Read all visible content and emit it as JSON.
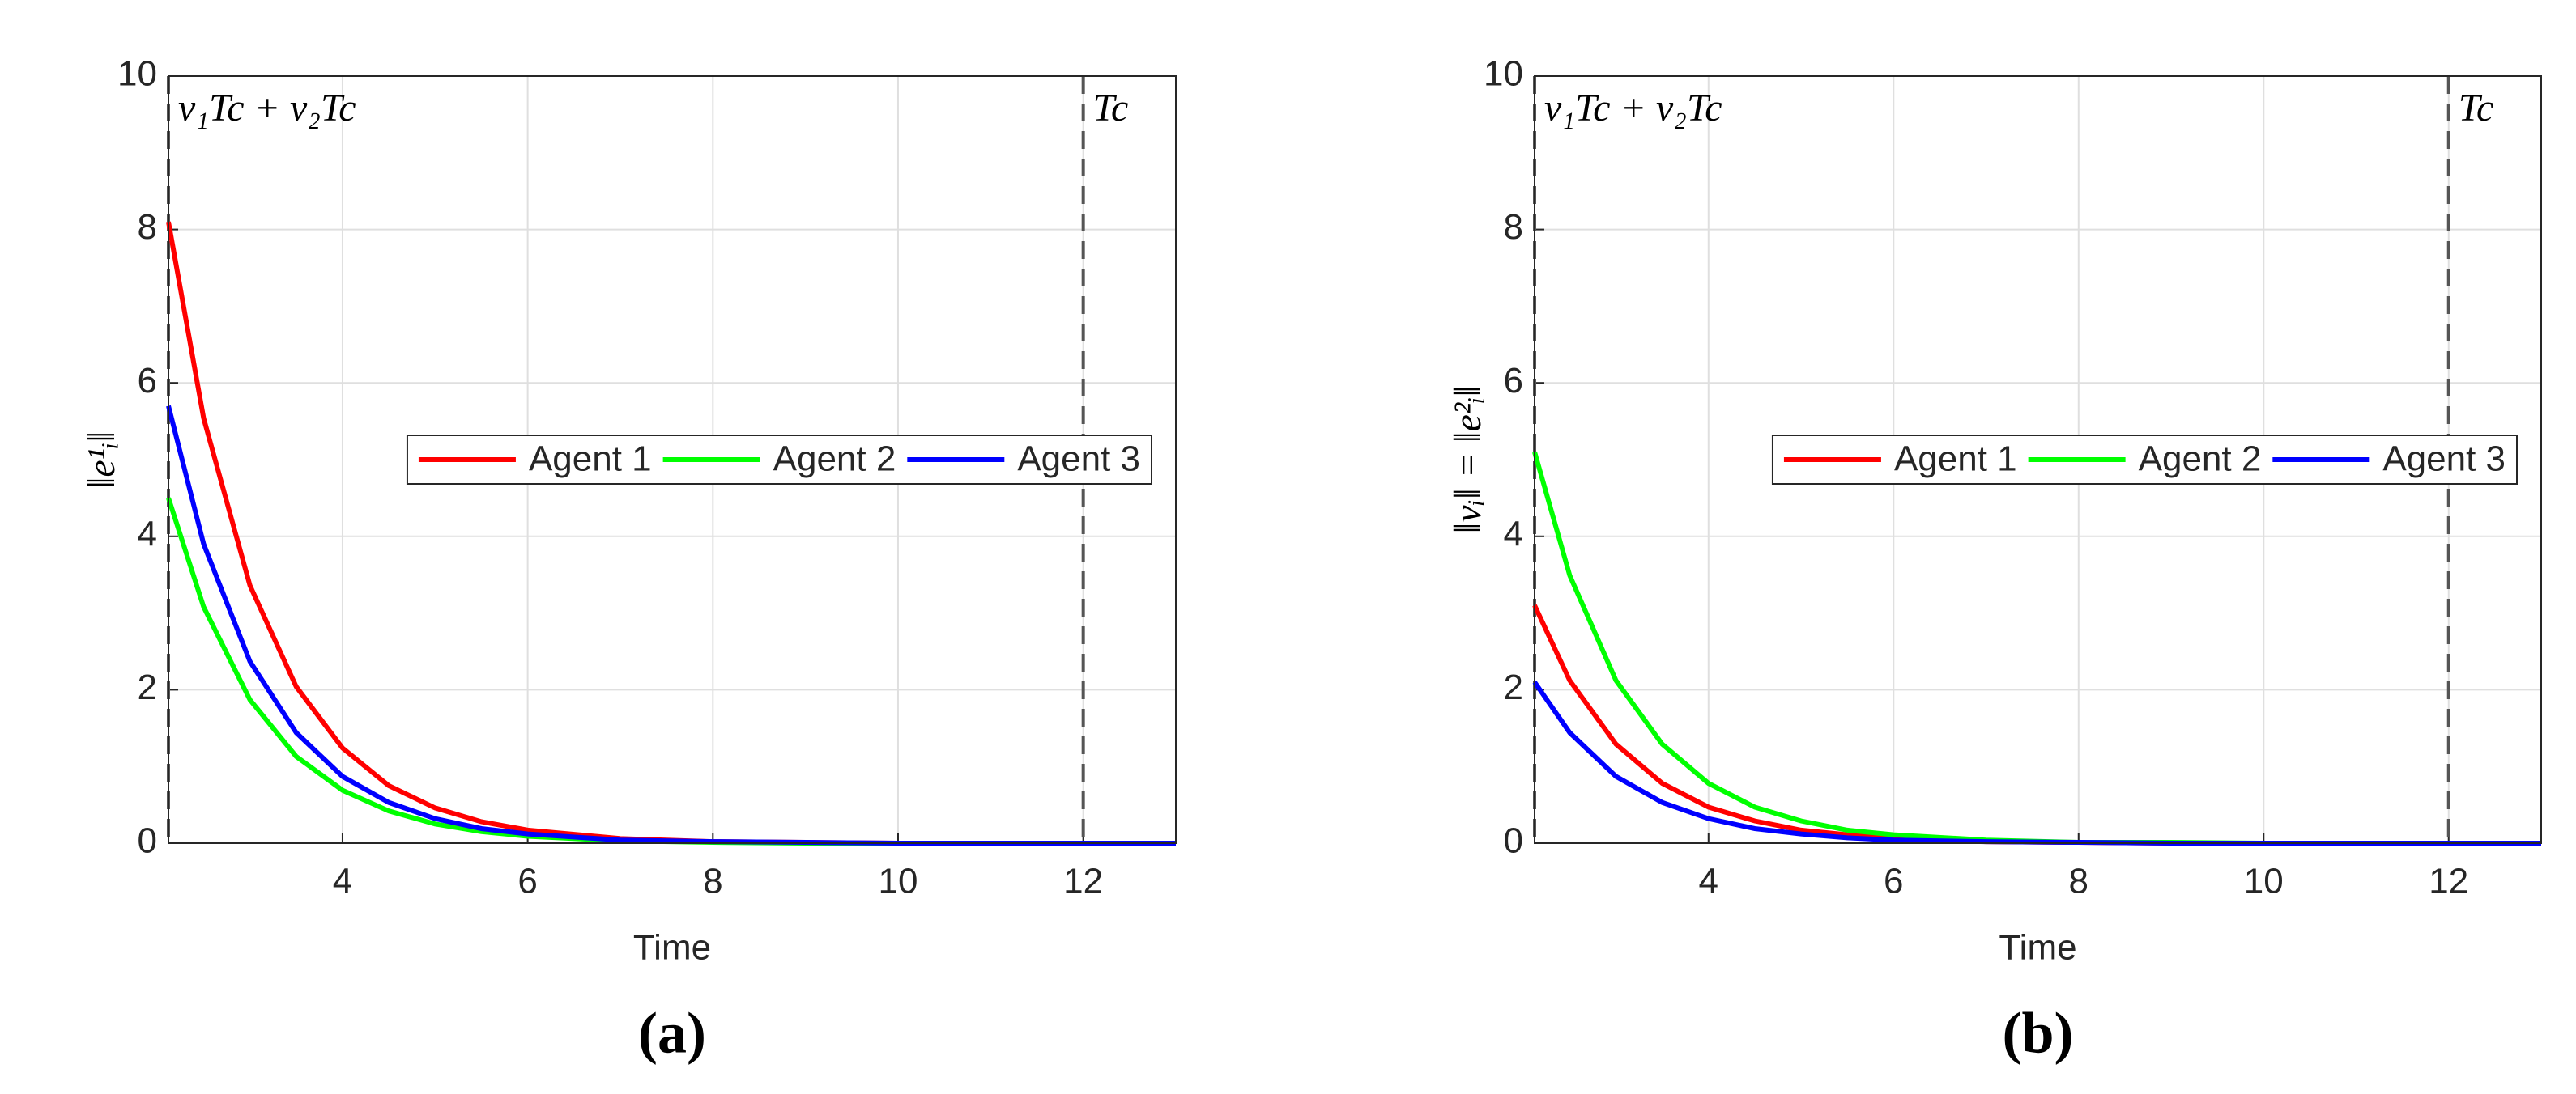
{
  "chart_data": [
    {
      "type": "line",
      "caption": "(a)",
      "xlabel": "Time",
      "ylabel": "‖e¹ᵢ‖",
      "x": [
        2.12,
        2.5,
        3,
        3.5,
        4,
        4.5,
        5,
        5.5,
        6,
        7,
        8,
        9,
        10,
        11,
        12,
        13
      ],
      "series": [
        {
          "name": "Agent 1",
          "color": "#ff0000",
          "values": [
            8.1,
            5.54,
            3.36,
            2.04,
            1.24,
            0.75,
            0.46,
            0.28,
            0.17,
            0.06,
            0.02,
            0.01,
            0,
            0,
            0,
            0
          ]
        },
        {
          "name": "Agent 2",
          "color": "#00ff00",
          "values": [
            4.5,
            3.08,
            1.87,
            1.13,
            0.69,
            0.42,
            0.25,
            0.15,
            0.09,
            0.03,
            0.01,
            0,
            0,
            0,
            0,
            0
          ]
        },
        {
          "name": "Agent 3",
          "color": "#0000ff",
          "values": [
            5.7,
            3.9,
            2.37,
            1.44,
            0.87,
            0.53,
            0.32,
            0.19,
            0.12,
            0.04,
            0.02,
            0.01,
            0,
            0,
            0,
            0
          ]
        }
      ],
      "xlim": [
        2.12,
        13
      ],
      "xticks": [
        4,
        6,
        8,
        10,
        12
      ],
      "ylim": [
        0,
        10
      ],
      "yticks": [
        0,
        2,
        4,
        6,
        8,
        10
      ],
      "grid": true,
      "legend": "east",
      "annotations": [
        {
          "x": 2.12,
          "text": "ν₁Tc + ν₂Tc"
        },
        {
          "x": 12,
          "text": "Tc"
        }
      ]
    },
    {
      "type": "line",
      "caption": "(b)",
      "xlabel": "Time",
      "ylabel": "‖vᵢ‖ = ‖e²ᵢ‖",
      "x": [
        2.12,
        2.5,
        3,
        3.5,
        4,
        4.5,
        5,
        5.5,
        6,
        7,
        8,
        9,
        10,
        11,
        12,
        13
      ],
      "series": [
        {
          "name": "Agent 1",
          "color": "#ff0000",
          "values": [
            3.1,
            2.12,
            1.29,
            0.78,
            0.47,
            0.29,
            0.17,
            0.11,
            0.06,
            0.02,
            0.01,
            0,
            0,
            0,
            0,
            0
          ]
        },
        {
          "name": "Agent 2",
          "color": "#00ff00",
          "values": [
            5.1,
            3.49,
            2.12,
            1.29,
            0.78,
            0.47,
            0.29,
            0.17,
            0.11,
            0.04,
            0.01,
            0.01,
            0,
            0,
            0,
            0
          ]
        },
        {
          "name": "Agent 3",
          "color": "#0000ff",
          "values": [
            2.1,
            1.44,
            0.87,
            0.53,
            0.32,
            0.19,
            0.12,
            0.07,
            0.04,
            0.02,
            0.01,
            0,
            0,
            0,
            0,
            0
          ]
        }
      ],
      "xlim": [
        2.12,
        13
      ],
      "xticks": [
        4,
        6,
        8,
        10,
        12
      ],
      "ylim": [
        0,
        10
      ],
      "yticks": [
        0,
        2,
        4,
        6,
        8,
        10
      ],
      "grid": true,
      "legend": "east",
      "annotations": [
        {
          "x": 2.12,
          "text": "ν₁Tc + ν₂Tc"
        },
        {
          "x": 12,
          "text": "Tc"
        }
      ]
    }
  ]
}
